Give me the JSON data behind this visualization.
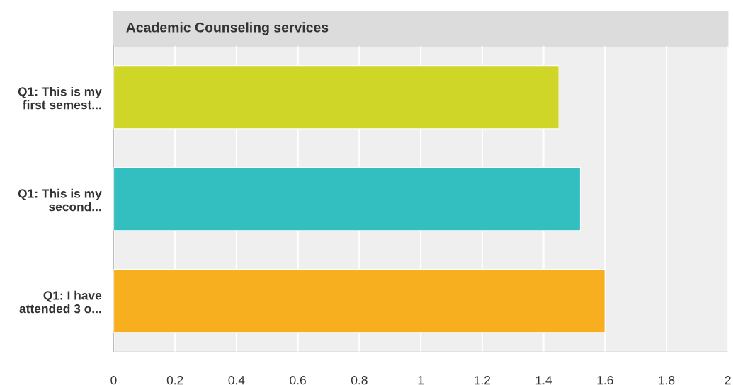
{
  "chart_data": {
    "type": "bar",
    "orientation": "horizontal",
    "title": "Academic Counseling services",
    "categories": [
      "Q1: This is my\nfirst semest...",
      "Q1: This is my\nsecond...",
      "Q1: I have\nattended 3 o..."
    ],
    "values": [
      1.45,
      1.52,
      1.6
    ],
    "colors": [
      "#cfd628",
      "#33bec0",
      "#f7ae1f"
    ],
    "xlim": [
      0,
      2
    ],
    "xticks": [
      0,
      0.2,
      0.4,
      0.6,
      0.8,
      1,
      1.2,
      1.4,
      1.6,
      1.8,
      2
    ],
    "grid": "x",
    "legend": false
  }
}
